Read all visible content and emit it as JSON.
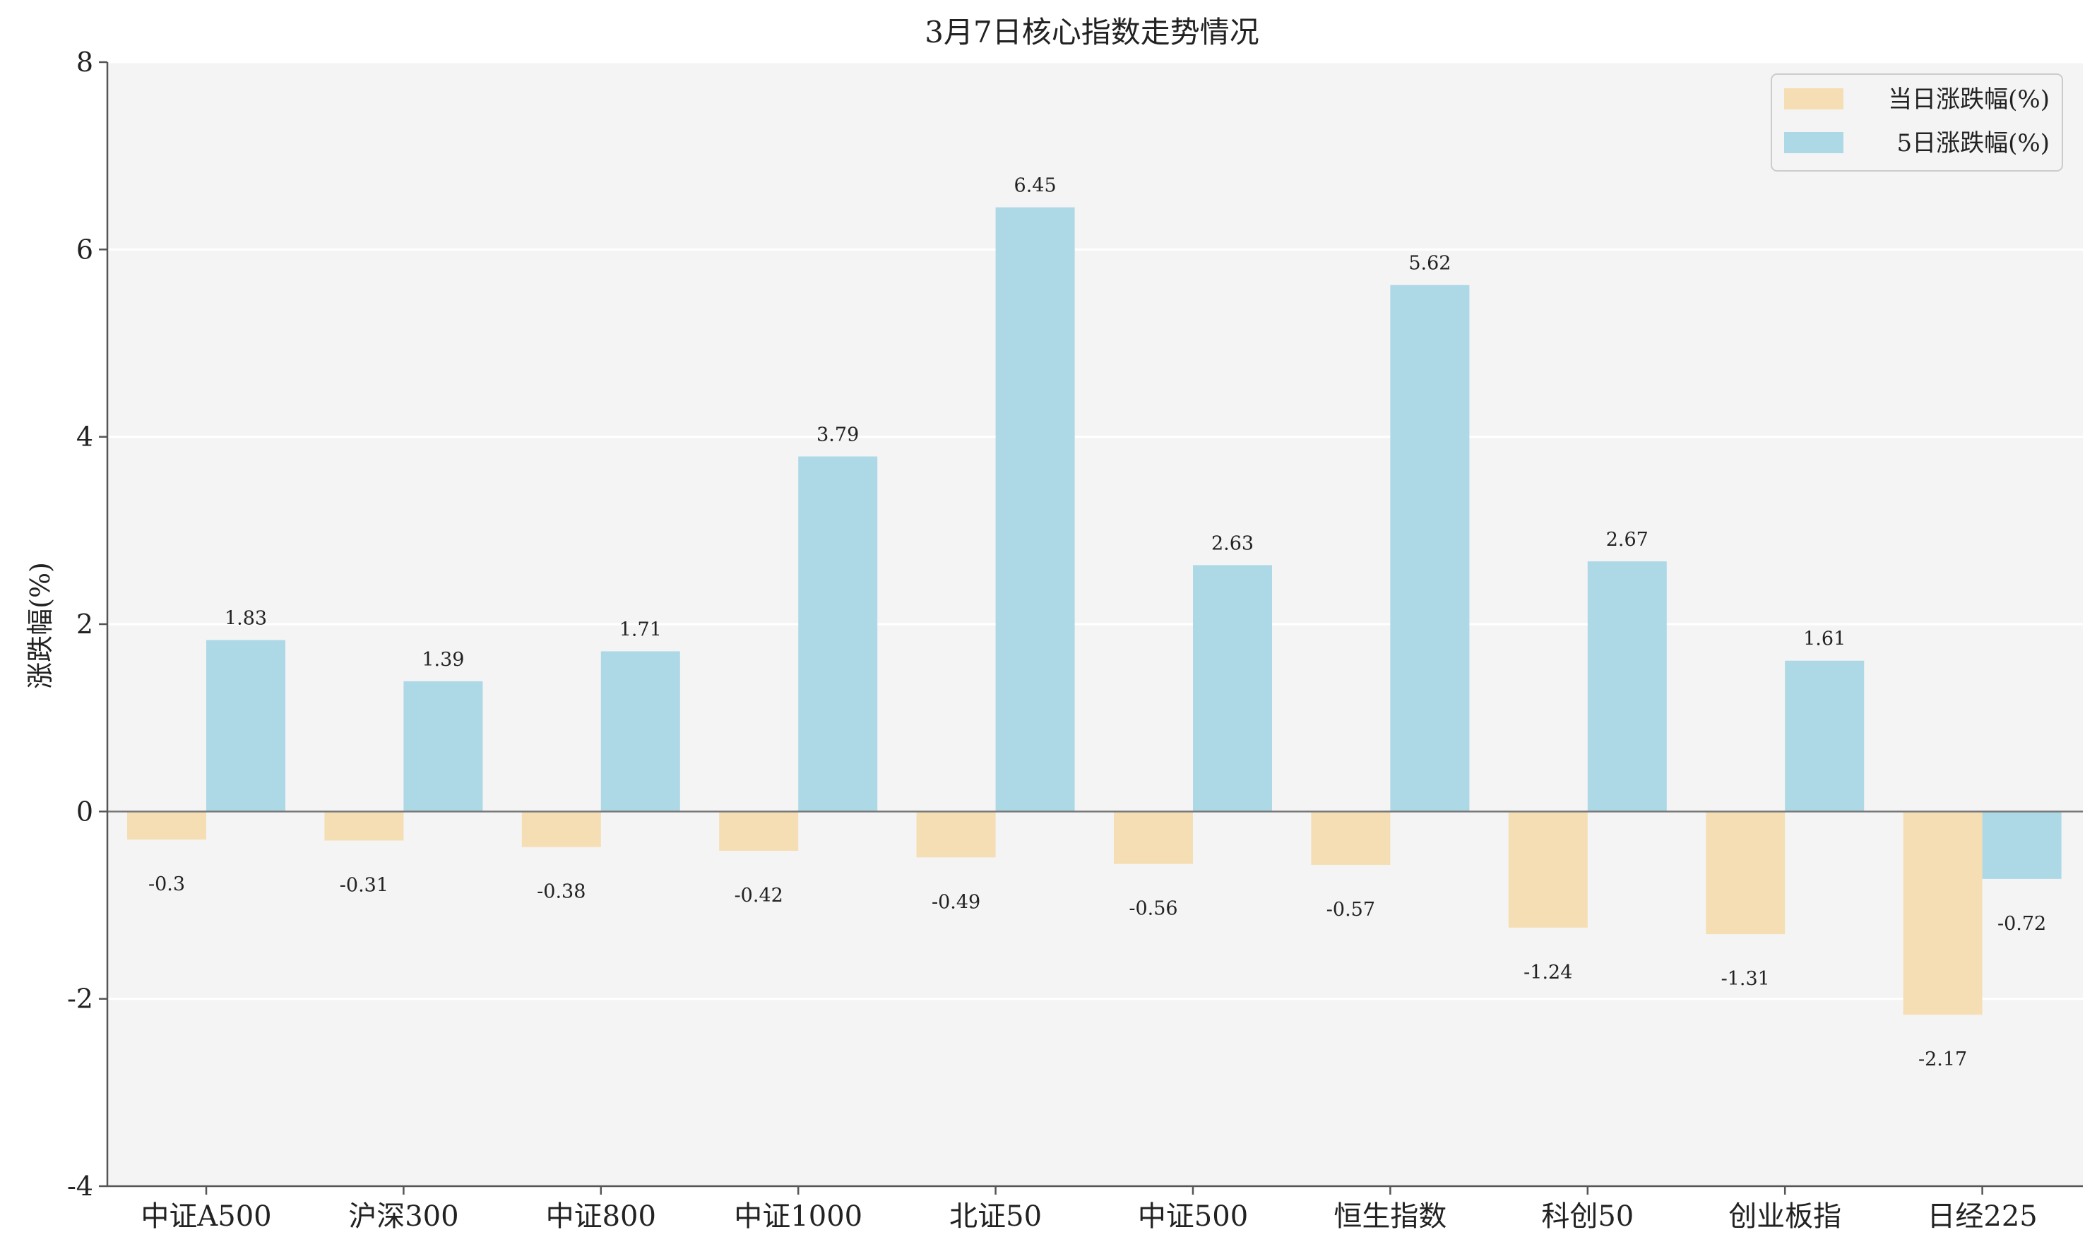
{
  "chart_data": {
    "type": "bar",
    "title": "3月7日核心指数走势情况",
    "xlabel": "",
    "ylabel": "涨跌幅(%)",
    "ylim": [
      -4,
      8
    ],
    "yticks": [
      -4,
      -2,
      0,
      2,
      4,
      6,
      8
    ],
    "grid": true,
    "legend_position": "top-right",
    "categories": [
      "中证A500",
      "沪深300",
      "中证800",
      "中证1000",
      "北证50",
      "中证500",
      "恒生指数",
      "科创50",
      "创业板指",
      "日经225"
    ],
    "series": [
      {
        "name": "当日涨跌幅(%)",
        "color": "#f5deb3",
        "values": [
          -0.3,
          -0.31,
          -0.38,
          -0.42,
          -0.49,
          -0.56,
          -0.57,
          -1.24,
          -1.31,
          -2.17
        ]
      },
      {
        "name": "5日涨跌幅(%)",
        "color": "#add8e6",
        "values": [
          1.83,
          1.39,
          1.71,
          3.79,
          6.45,
          2.63,
          5.62,
          2.67,
          1.61,
          -0.72
        ]
      }
    ]
  },
  "colors": {
    "plot_background": "#f4f4f4",
    "grid": "#ffffff",
    "axis": "#555555",
    "zero_line": "#777777"
  }
}
